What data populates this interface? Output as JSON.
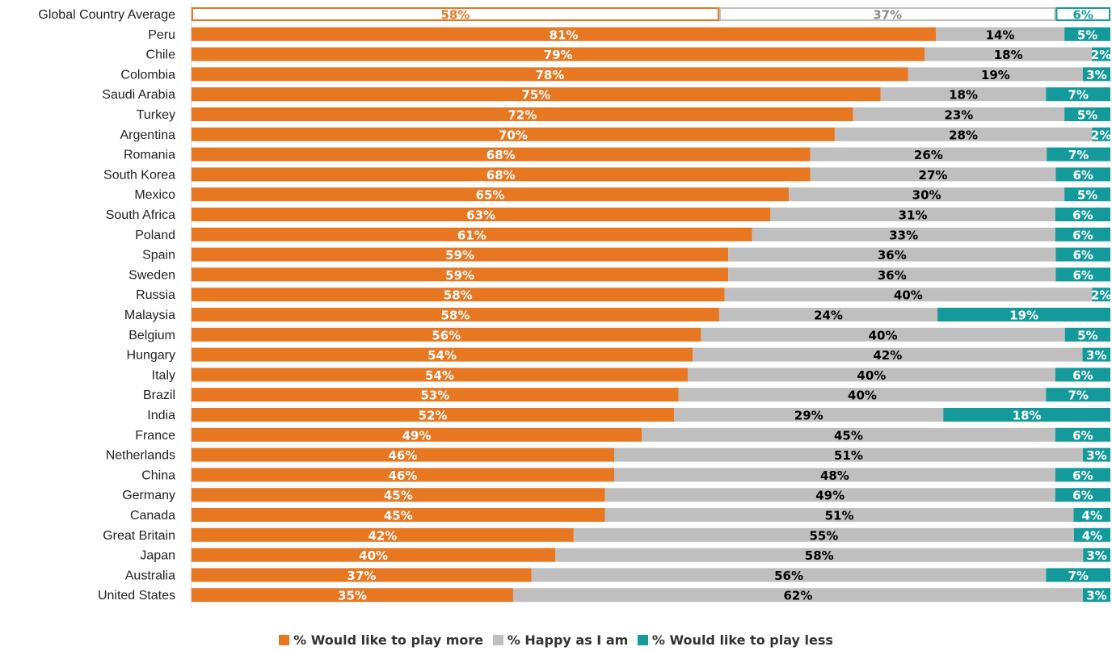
{
  "chart_data": {
    "type": "bar",
    "orientation": "horizontal",
    "stacked": true,
    "percent_labels": true,
    "categories": [
      "Global Country Average",
      "Peru",
      "Chile",
      "Colombia",
      "Saudi Arabia",
      "Turkey",
      "Argentina",
      "Romania",
      "South Korea",
      "Mexico",
      "South Africa",
      "Poland",
      "Spain",
      "Sweden",
      "Russia",
      "Malaysia",
      "Belgium",
      "Hungary",
      "Italy",
      "Brazil",
      "India",
      "France",
      "Netherlands",
      "China",
      "Germany",
      "Canada",
      "Great Britain",
      "Japan",
      "Australia",
      "United States"
    ],
    "series": [
      {
        "name": "% Would like to play more",
        "color": "#E87722",
        "label_color": "#FFFFFF",
        "values": [
          58,
          81,
          79,
          78,
          75,
          72,
          70,
          68,
          68,
          65,
          63,
          61,
          59,
          59,
          58,
          58,
          56,
          54,
          54,
          53,
          52,
          49,
          46,
          46,
          45,
          45,
          42,
          40,
          37,
          35
        ]
      },
      {
        "name": "% Happy as I am",
        "color": "#BFBFBF",
        "label_color": "#000000",
        "values": [
          37,
          14,
          18,
          19,
          18,
          23,
          28,
          26,
          27,
          30,
          31,
          33,
          36,
          36,
          40,
          24,
          40,
          42,
          40,
          40,
          29,
          45,
          51,
          48,
          49,
          51,
          55,
          58,
          56,
          62
        ]
      },
      {
        "name": "% Would like to play less",
        "color": "#159A9C",
        "label_color": "#FFFFFF",
        "values": [
          6,
          5,
          2,
          3,
          7,
          5,
          2,
          7,
          6,
          5,
          6,
          6,
          6,
          6,
          2,
          19,
          5,
          3,
          6,
          7,
          18,
          6,
          3,
          6,
          6,
          4,
          4,
          3,
          7,
          3
        ]
      }
    ],
    "highlight_first_row": {
      "style": "outline",
      "label_colors": [
        "#E87722",
        "#8C8C8C",
        "#159A9C"
      ]
    },
    "legend_position": "bottom",
    "grid": false
  }
}
